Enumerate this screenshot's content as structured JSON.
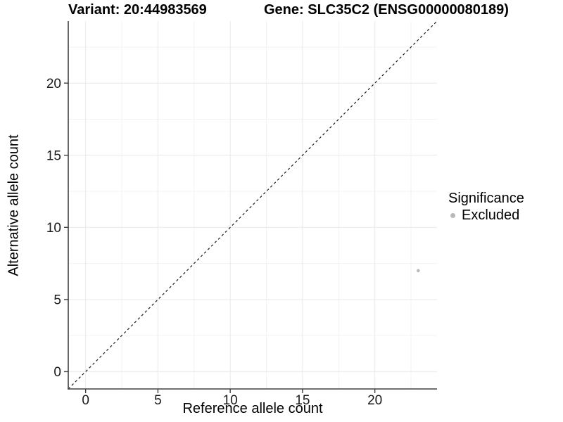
{
  "header": {
    "title_left": "Variant: 20:44983569",
    "title_right": "Gene: SLC35C2 (ENSG00000080189)"
  },
  "chart_data": {
    "type": "scatter",
    "title_left": "Variant: 20:44983569",
    "title_right": "Gene: SLC35C2 (ENSG00000080189)",
    "xlabel": "Reference allele count",
    "ylabel": "Alternative allele count",
    "xlim": [
      -1.2,
      24.3
    ],
    "ylim": [
      -1.2,
      24.3
    ],
    "xticks": [
      0,
      5,
      10,
      15,
      20
    ],
    "yticks": [
      0,
      5,
      10,
      15,
      20
    ],
    "minor_grid_step": 2.5,
    "grid": "major+minor",
    "identity_line": {
      "equation": "y = x",
      "style": "dashed",
      "color": "#1a1a1a"
    },
    "series": [
      {
        "name": "Excluded",
        "color": "#b9b9b9",
        "points": [
          [
            23,
            7
          ]
        ]
      }
    ],
    "legend": {
      "title": "Significance",
      "position": "right",
      "entries": [
        {
          "label": "Excluded",
          "color": "#b9b9b9"
        }
      ]
    }
  },
  "colors": {
    "background": "#ffffff",
    "grid_major": "#e9e9e9",
    "grid_minor": "#f3f3f3",
    "axis_line": "#404040",
    "tick_text": "#1a1a1a"
  }
}
